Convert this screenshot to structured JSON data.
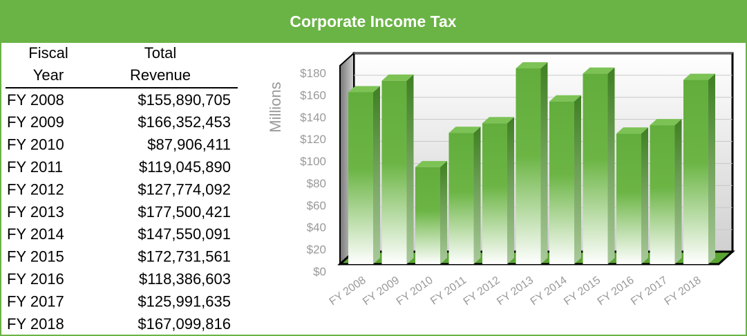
{
  "header": {
    "title": "Corporate Income Tax"
  },
  "table": {
    "columns": [
      [
        "Fiscal",
        "Year"
      ],
      [
        "Total",
        "Revenue"
      ]
    ],
    "rows": [
      [
        "FY 2008",
        "$155,890,705"
      ],
      [
        "FY 2009",
        "$166,352,453"
      ],
      [
        "FY 2010",
        "$87,906,411"
      ],
      [
        "FY 2011",
        "$119,045,890"
      ],
      [
        "FY 2012",
        "$127,774,092"
      ],
      [
        "FY 2013",
        "$177,500,421"
      ],
      [
        "FY 2014",
        "$147,550,091"
      ],
      [
        "FY 2015",
        "$172,731,561"
      ],
      [
        "FY 2016",
        "$118,386,603"
      ],
      [
        "FY 2017",
        "$125,991,635"
      ],
      [
        "FY 2018",
        "$167,099,816"
      ]
    ]
  },
  "chart_data": {
    "type": "bar",
    "y_label": "Millions",
    "categories": [
      "FY 2008",
      "FY 2009",
      "FY 2010",
      "FY 2011",
      "FY 2012",
      "FY 2013",
      "FY 2014",
      "FY 2015",
      "FY 2016",
      "FY 2017",
      "FY 2018"
    ],
    "values": [
      155.890705,
      166.352453,
      87.906411,
      119.04589,
      127.774092,
      177.500421,
      147.550091,
      172.731561,
      118.386603,
      125.991635,
      167.099816
    ],
    "color": "#62ad3c",
    "ylim": [
      0,
      180
    ],
    "yticks": [
      {
        "value": 0,
        "label": "$0"
      },
      {
        "value": 20,
        "label": "$20"
      },
      {
        "value": 40,
        "label": "$40"
      },
      {
        "value": 60,
        "label": "$60"
      },
      {
        "value": 80,
        "label": "$80"
      },
      {
        "value": 100,
        "label": "$100"
      },
      {
        "value": 120,
        "label": "$120"
      },
      {
        "value": 140,
        "label": "$140"
      },
      {
        "value": 160,
        "label": "$160"
      },
      {
        "value": 180,
        "label": "$180"
      }
    ],
    "grid": true
  }
}
